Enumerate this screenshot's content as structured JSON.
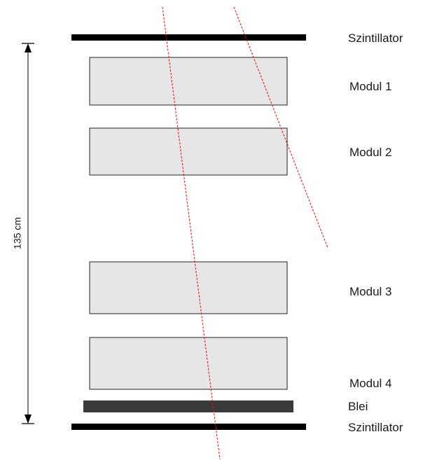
{
  "diagram": {
    "labels": {
      "scintillator_top": "Szintillator",
      "modul1": "Modul 1",
      "modul2": "Modul 2",
      "modul3": "Modul 3",
      "modul4": "Modul 4",
      "lead": "Blei",
      "scintillator_bottom": "Szintillator",
      "height_dimension": "135 cm"
    },
    "colors": {
      "scintillator": "#000000",
      "module_fill": "#e6e6e6",
      "module_stroke": "#222222",
      "lead": "#3a3a3a",
      "track": "#ff0000",
      "dimension": "#000000"
    }
  }
}
